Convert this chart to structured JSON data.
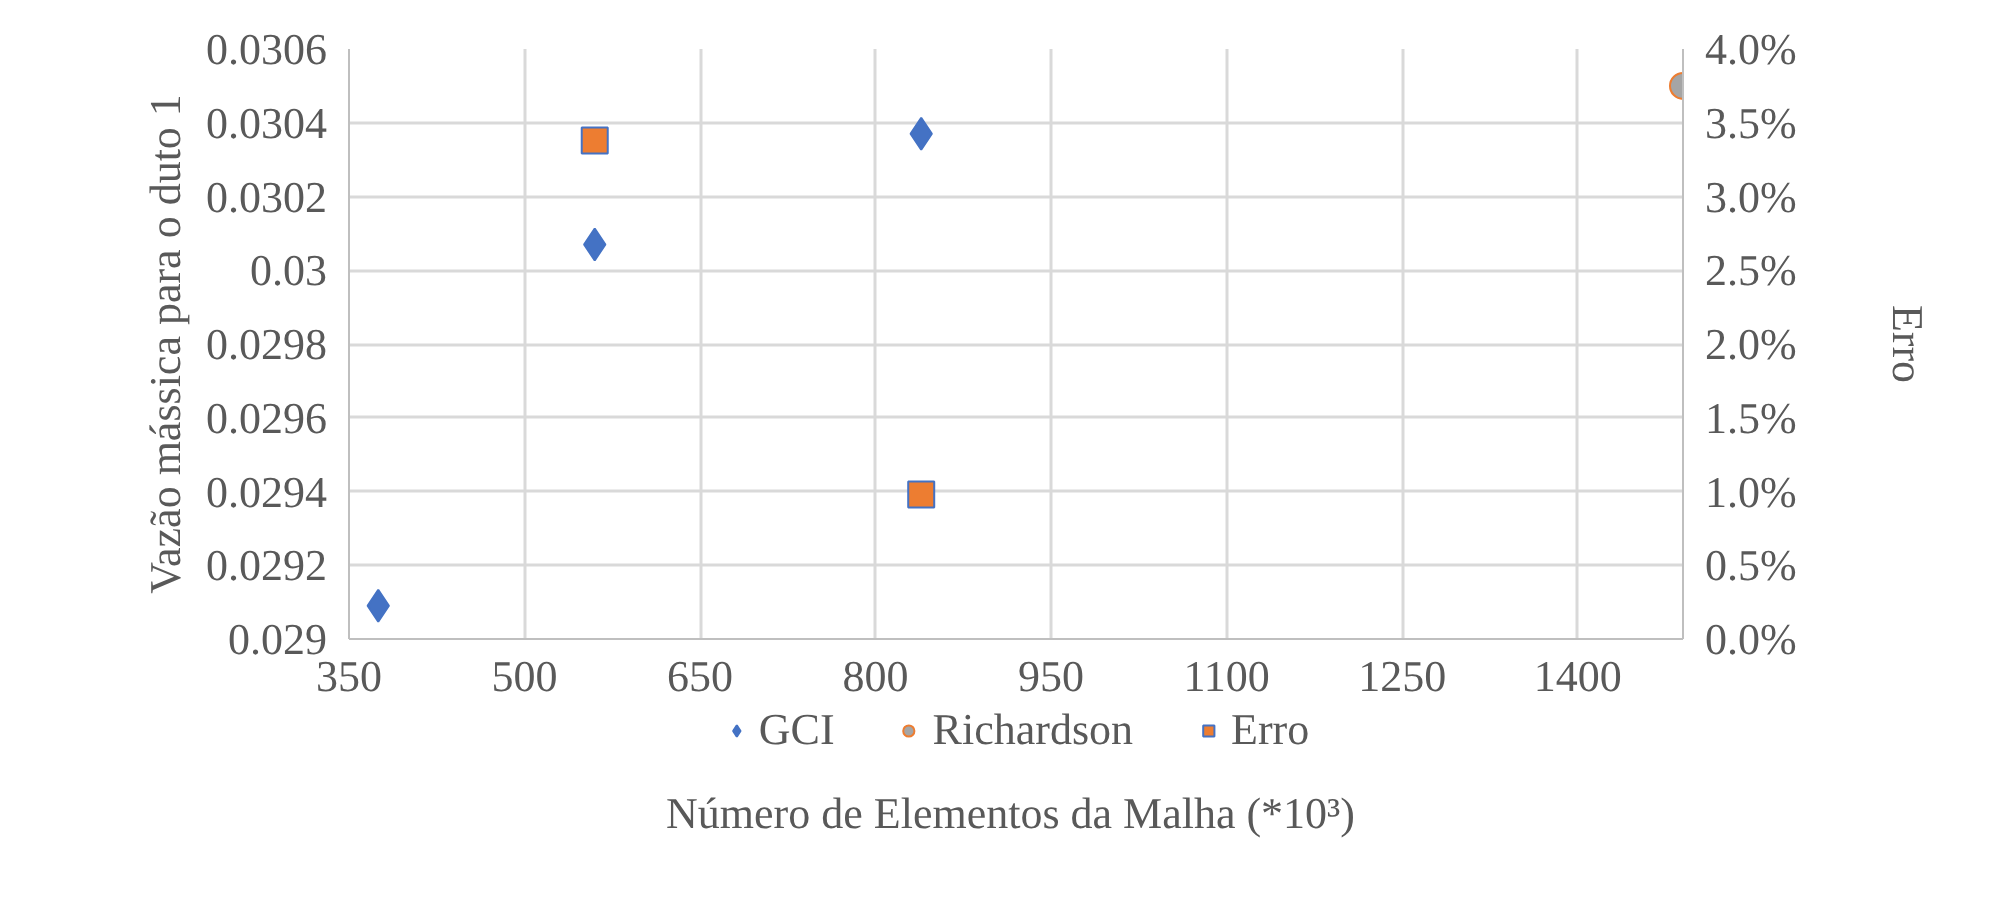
{
  "chart_data": {
    "type": "scatter",
    "xlabel": "Número de  Elementos da Malha (*10³)",
    "ylabel": "Vazão mássica para o duto 1",
    "y2label": "Erro",
    "xlim": [
      350,
      1490
    ],
    "xticks": [
      350,
      500,
      650,
      800,
      950,
      1100,
      1250,
      1400
    ],
    "ylim": [
      0.029,
      0.0306
    ],
    "yticks": [
      0.029,
      0.0292,
      0.0294,
      0.0296,
      0.0298,
      0.03,
      0.0302,
      0.0304,
      0.0306
    ],
    "y2lim": [
      0,
      4
    ],
    "y2ticks": [
      {
        "value": 0,
        "label": "0.0%"
      },
      {
        "value": 0.5,
        "label": "0.5%"
      },
      {
        "value": 1,
        "label": "1.0%"
      },
      {
        "value": 1.5,
        "label": "1.5%"
      },
      {
        "value": 2,
        "label": "2.0%"
      },
      {
        "value": 2.5,
        "label": "2.5%"
      },
      {
        "value": 3,
        "label": "3.0%"
      },
      {
        "value": 3.5,
        "label": "3.5%"
      },
      {
        "value": 4,
        "label": "4.0%"
      }
    ],
    "grid": true,
    "legend": "bottom",
    "series": [
      {
        "name": "GCI",
        "color": "#4472c4",
        "marker": "diamond",
        "x": [
          375,
          560,
          839
        ],
        "values": [
          0.02909,
          0.03007,
          0.03037
        ]
      },
      {
        "name": "Richardson",
        "color": "#a5a5a5",
        "marker": "circle",
        "x": [
          1490
        ],
        "values": [
          0.0305
        ]
      },
      {
        "name": "Erro",
        "color": "#ed7d31",
        "marker": "square",
        "axis": "y2",
        "x": [
          560,
          839
        ],
        "values": [
          3.38,
          0.98
        ]
      }
    ]
  }
}
